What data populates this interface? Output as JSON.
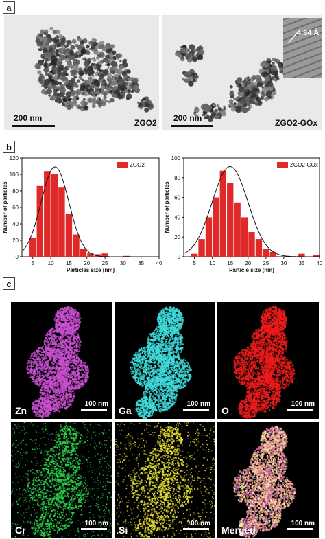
{
  "panels": {
    "a": "a",
    "b": "b",
    "c": "c"
  },
  "tem": {
    "left": {
      "label": "ZGO2",
      "scale": "200 nm"
    },
    "right": {
      "label": "ZGO2-GOx",
      "scale": "200 nm",
      "inset_spacing": "4.84 Å"
    }
  },
  "chart_data": [
    {
      "type": "bar",
      "title": "",
      "xlabel": "Particles size (nm)",
      "ylabel": "Number of particles",
      "xlim": [
        2,
        40
      ],
      "ylim": [
        0,
        120
      ],
      "xticks": [
        5,
        10,
        15,
        20,
        25,
        30,
        35,
        40
      ],
      "yticks": [
        0,
        20,
        40,
        60,
        80,
        100,
        120
      ],
      "bar_width": 1.8,
      "x": [
        5,
        7,
        9,
        11,
        13,
        15,
        17,
        19,
        21,
        23,
        25,
        27,
        31
      ],
      "values": [
        23,
        86,
        104,
        100,
        84,
        52,
        27,
        10,
        4,
        3,
        4,
        0,
        1
      ],
      "series": [
        {
          "name": "ZGO2",
          "color": "#e02a2a"
        }
      ],
      "legend": "top-right",
      "fit": "gaussian curve"
    },
    {
      "type": "bar",
      "title": "",
      "xlabel": "Particle size (nm)",
      "ylabel": "Number of particles",
      "xlim": [
        2,
        40
      ],
      "ylim": [
        0,
        100
      ],
      "xticks": [
        5,
        10,
        15,
        20,
        25,
        30,
        35,
        40
      ],
      "yticks": [
        0,
        20,
        40,
        60,
        80,
        100
      ],
      "bar_width": 1.8,
      "x": [
        5,
        7,
        9,
        11,
        13,
        15,
        17,
        19,
        21,
        23,
        25,
        27,
        29,
        31,
        33,
        35,
        37,
        39
      ],
      "values": [
        3,
        18,
        40,
        60,
        87,
        75,
        55,
        40,
        25,
        18,
        8,
        5,
        0,
        0,
        0,
        3,
        0,
        2
      ],
      "series": [
        {
          "name": "ZGO2-GOx",
          "color": "#e02a2a"
        }
      ],
      "legend": "top-right",
      "fit": "gaussian curve"
    }
  ],
  "maps": [
    {
      "element": "Zn",
      "scale": "100 nm",
      "color": "#c850d0"
    },
    {
      "element": "Ga",
      "scale": "100 nm",
      "color": "#40dcdc"
    },
    {
      "element": "O",
      "scale": "100 nm",
      "color": "#ee1c1c"
    },
    {
      "element": "Cr",
      "scale": "100 nm",
      "color": "#2bd14a"
    },
    {
      "element": "Si",
      "scale": "100 nm",
      "color": "#e7e032"
    },
    {
      "element": "Merged",
      "scale": "100 nm",
      "color": "#f0c090"
    }
  ]
}
